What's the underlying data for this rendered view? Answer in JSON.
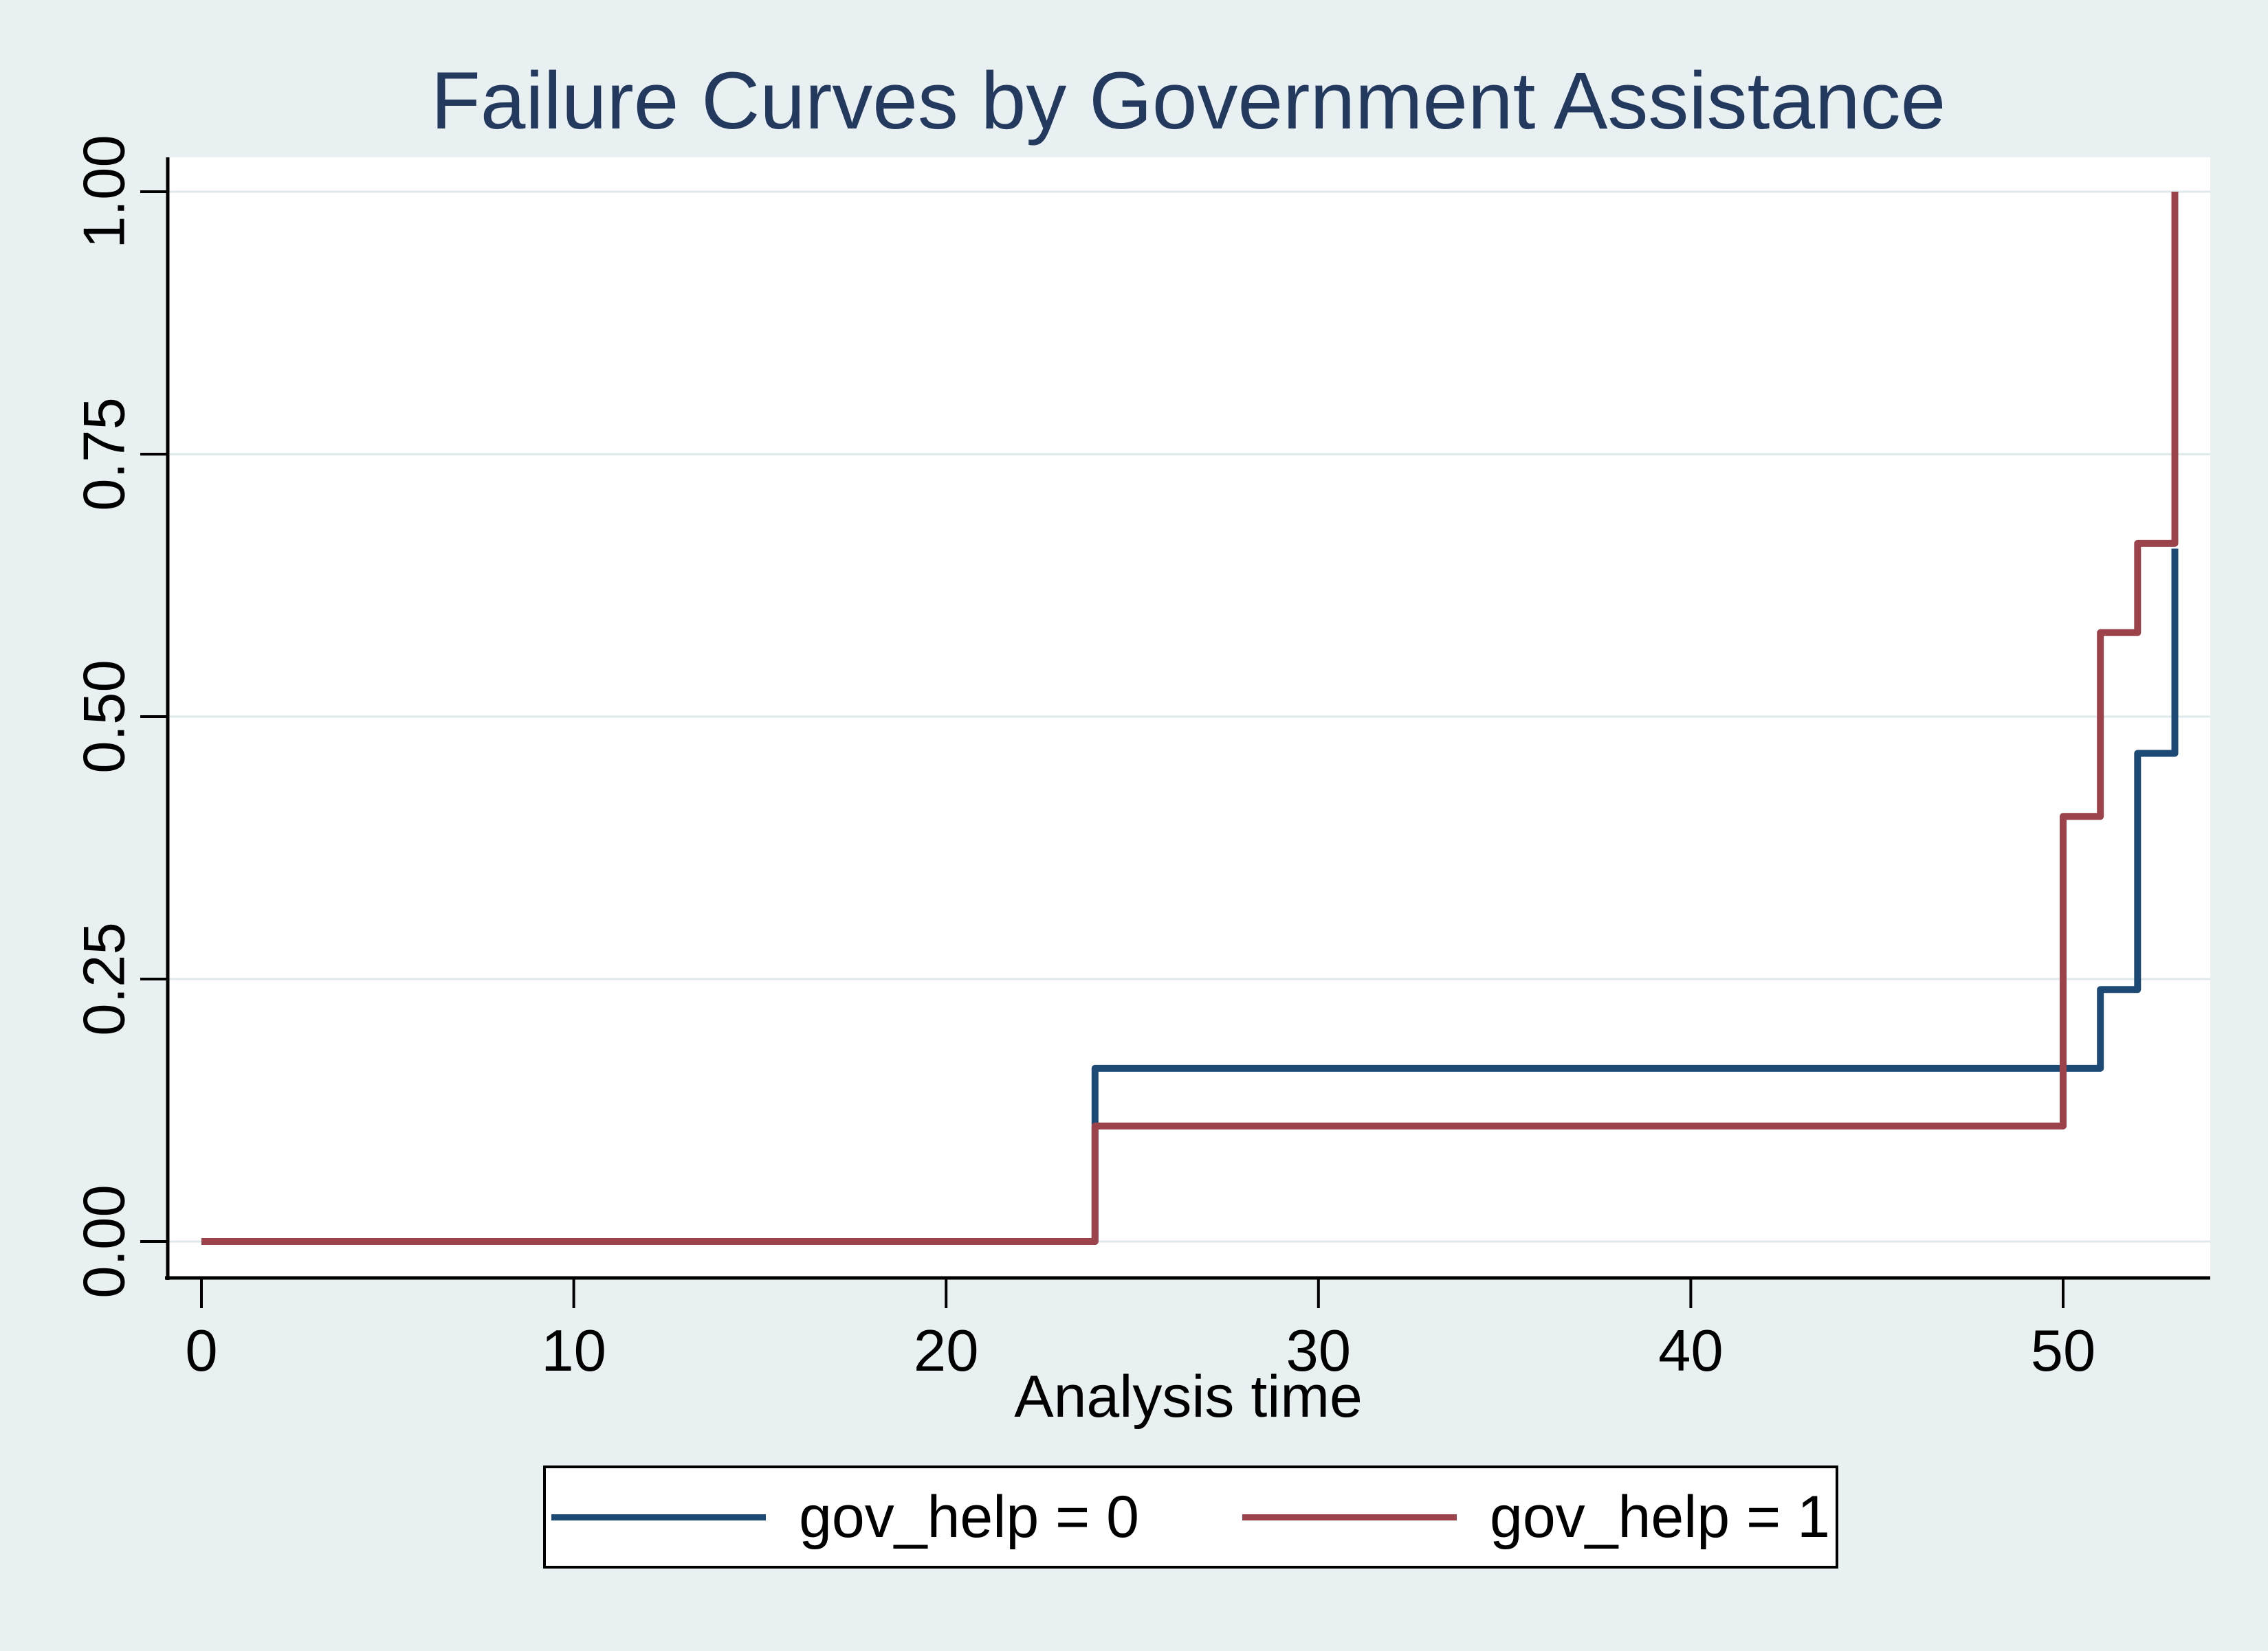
{
  "figure": {
    "title": "Failure Curves by Government Assistance",
    "title_color": "#24395e",
    "background_color": "#e9f0f2",
    "plot_background": "#ffffff",
    "gridline_color": "#dee9ec",
    "axis_color": "#000000"
  },
  "chart_data": {
    "type": "line",
    "subtype": "step-failure-curve",
    "title": "Failure Curves by Government Assistance",
    "xlabel": "Analysis time",
    "ylabel": "",
    "xlim": [
      -0.95,
      54
    ],
    "ylim": [
      -0.035,
      1.03
    ],
    "x_ticks": [
      0,
      10,
      20,
      30,
      40,
      50
    ],
    "x_tick_labels": [
      "0",
      "10",
      "20",
      "30",
      "40",
      "50"
    ],
    "y_ticks": [
      0.0,
      0.25,
      0.5,
      0.75,
      1.0
    ],
    "y_tick_labels": [
      "0.00",
      "0.25",
      "0.50",
      "0.75",
      "1.00"
    ],
    "grid": "horizontal",
    "legend_position": "bottom",
    "series": [
      {
        "name": "gov_help = 0",
        "color": "#1d4a74",
        "points": [
          [
            0,
            0
          ],
          [
            24,
            0
          ],
          [
            24,
            0.165
          ],
          [
            51,
            0.165
          ],
          [
            51,
            0.24
          ],
          [
            52,
            0.24
          ],
          [
            52,
            0.465
          ],
          [
            53,
            0.465
          ],
          [
            53,
            0.66
          ]
        ]
      },
      {
        "name": "gov_help = 1",
        "color": "#9c424b",
        "points": [
          [
            0,
            0
          ],
          [
            24,
            0
          ],
          [
            24,
            0.11
          ],
          [
            50,
            0.11
          ],
          [
            50,
            0.405
          ],
          [
            51,
            0.405
          ],
          [
            51,
            0.58
          ],
          [
            52,
            0.58
          ],
          [
            52,
            0.665
          ],
          [
            53,
            0.665
          ],
          [
            53,
            1.0
          ]
        ]
      }
    ]
  }
}
